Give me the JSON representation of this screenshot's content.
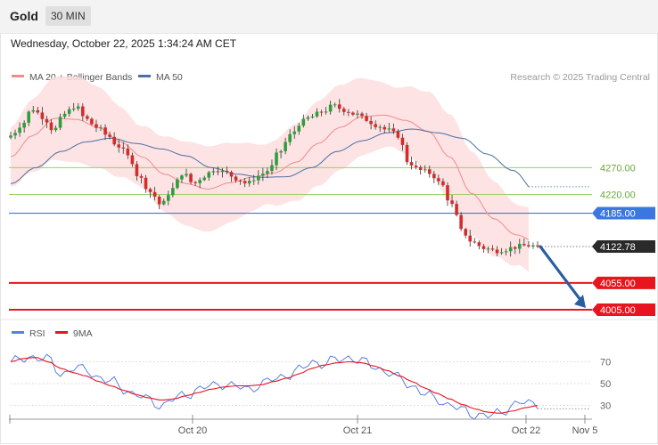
{
  "header": {
    "instrument": "Gold",
    "timeframe": "30 MIN"
  },
  "date_text": "Wednesday, October 22, 2025 1:34:24 AM CET",
  "credit": "Research © 2025 Trading Central",
  "colors": {
    "candle_up": "#2e9e3b",
    "candle_down": "#d62b2b",
    "bollinger_fill": "#fddede",
    "ma20": "#f28b8b",
    "ma50": "#4a6fa5",
    "support_red": "#e8141e",
    "pivot_blue": "#3a78e0",
    "resistance_green": "#9ccf6a",
    "arrow": "#2b5ea0",
    "rsi": "#5a7fe0",
    "rsi_ma": "#e8141e",
    "current_price_box": "#2a2a2a"
  },
  "chart_data": [
    {
      "type": "candlestick",
      "legend": [
        {
          "name": "MA 20 + Bollinger Bands",
          "color": "#f28b8b"
        },
        {
          "name": "MA 50",
          "color": "#4a6fa5"
        }
      ],
      "ylim": [
        3990,
        4425
      ],
      "levels": [
        {
          "label": "4270.00",
          "value": 4270,
          "kind": "resistance"
        },
        {
          "label": "4220.00",
          "value": 4220,
          "kind": "resistance"
        },
        {
          "label": "4185.00",
          "value": 4185,
          "kind": "pivot"
        },
        {
          "label": "4122.78",
          "value": 4122.78,
          "kind": "current"
        },
        {
          "label": "4055.00",
          "value": 4055,
          "kind": "support"
        },
        {
          "label": "4005.00",
          "value": 4005,
          "kind": "support"
        }
      ],
      "forecast_arrow": {
        "from_value": 4122.78,
        "to_value": 4005
      },
      "x_ticks": [
        "Oct 20",
        "Oct 21",
        "Oct 22",
        "Nov 5"
      ],
      "close_keypoints": [
        4330,
        4350,
        4380,
        4365,
        4340,
        4370,
        4385,
        4360,
        4345,
        4330,
        4310,
        4290,
        4250,
        4225,
        4200,
        4230,
        4260,
        4240,
        4255,
        4268,
        4260,
        4250,
        4240,
        4255,
        4265,
        4300,
        4330,
        4355,
        4365,
        4375,
        4385,
        4378,
        4370,
        4360,
        4350,
        4340,
        4330,
        4280,
        4265,
        4260,
        4240,
        4200,
        4150,
        4130,
        4120,
        4115,
        4118,
        4122,
        4125,
        4122.78
      ],
      "ma50_keypoints": [
        4240,
        4270,
        4300,
        4318,
        4325,
        4315,
        4305,
        4292,
        4270,
        4258,
        4252,
        4253,
        4270,
        4300,
        4320,
        4335,
        4342,
        4335,
        4325,
        4295,
        4265,
        4222
      ],
      "ma20_keypoints": [
        4290,
        4330,
        4362,
        4360,
        4345,
        4318,
        4290,
        4258,
        4240,
        4230,
        4242,
        4252,
        4260,
        4280,
        4315,
        4345,
        4365,
        4368,
        4358,
        4338,
        4290,
        4222,
        4175,
        4145,
        4130
      ]
    },
    {
      "type": "line",
      "legend": [
        {
          "name": "RSI",
          "color": "#5a7fe0"
        },
        {
          "name": "9MA",
          "color": "#e8141e"
        }
      ],
      "ylim": [
        20,
        85
      ],
      "y_ticks": [
        70,
        50,
        30
      ],
      "rsi_keypoints": [
        70,
        72,
        75,
        72,
        58,
        65,
        62,
        56,
        52,
        45,
        40,
        35,
        30,
        36,
        40,
        45,
        48,
        50,
        47,
        45,
        50,
        54,
        58,
        62,
        70,
        68,
        72,
        74,
        70,
        66,
        60,
        55,
        48,
        40,
        36,
        30,
        26,
        22,
        20,
        24,
        30,
        33,
        32
      ],
      "rsi_ma_keypoints": [
        70,
        73,
        74,
        70,
        64,
        60,
        57,
        52,
        48,
        44,
        40,
        37,
        35,
        36,
        39,
        42,
        45,
        47,
        48,
        48,
        49,
        52,
        55,
        59,
        64,
        67,
        69,
        70,
        69,
        66,
        62,
        57,
        52,
        46,
        41,
        36,
        31,
        27,
        24,
        23,
        25,
        28,
        30
      ]
    }
  ]
}
